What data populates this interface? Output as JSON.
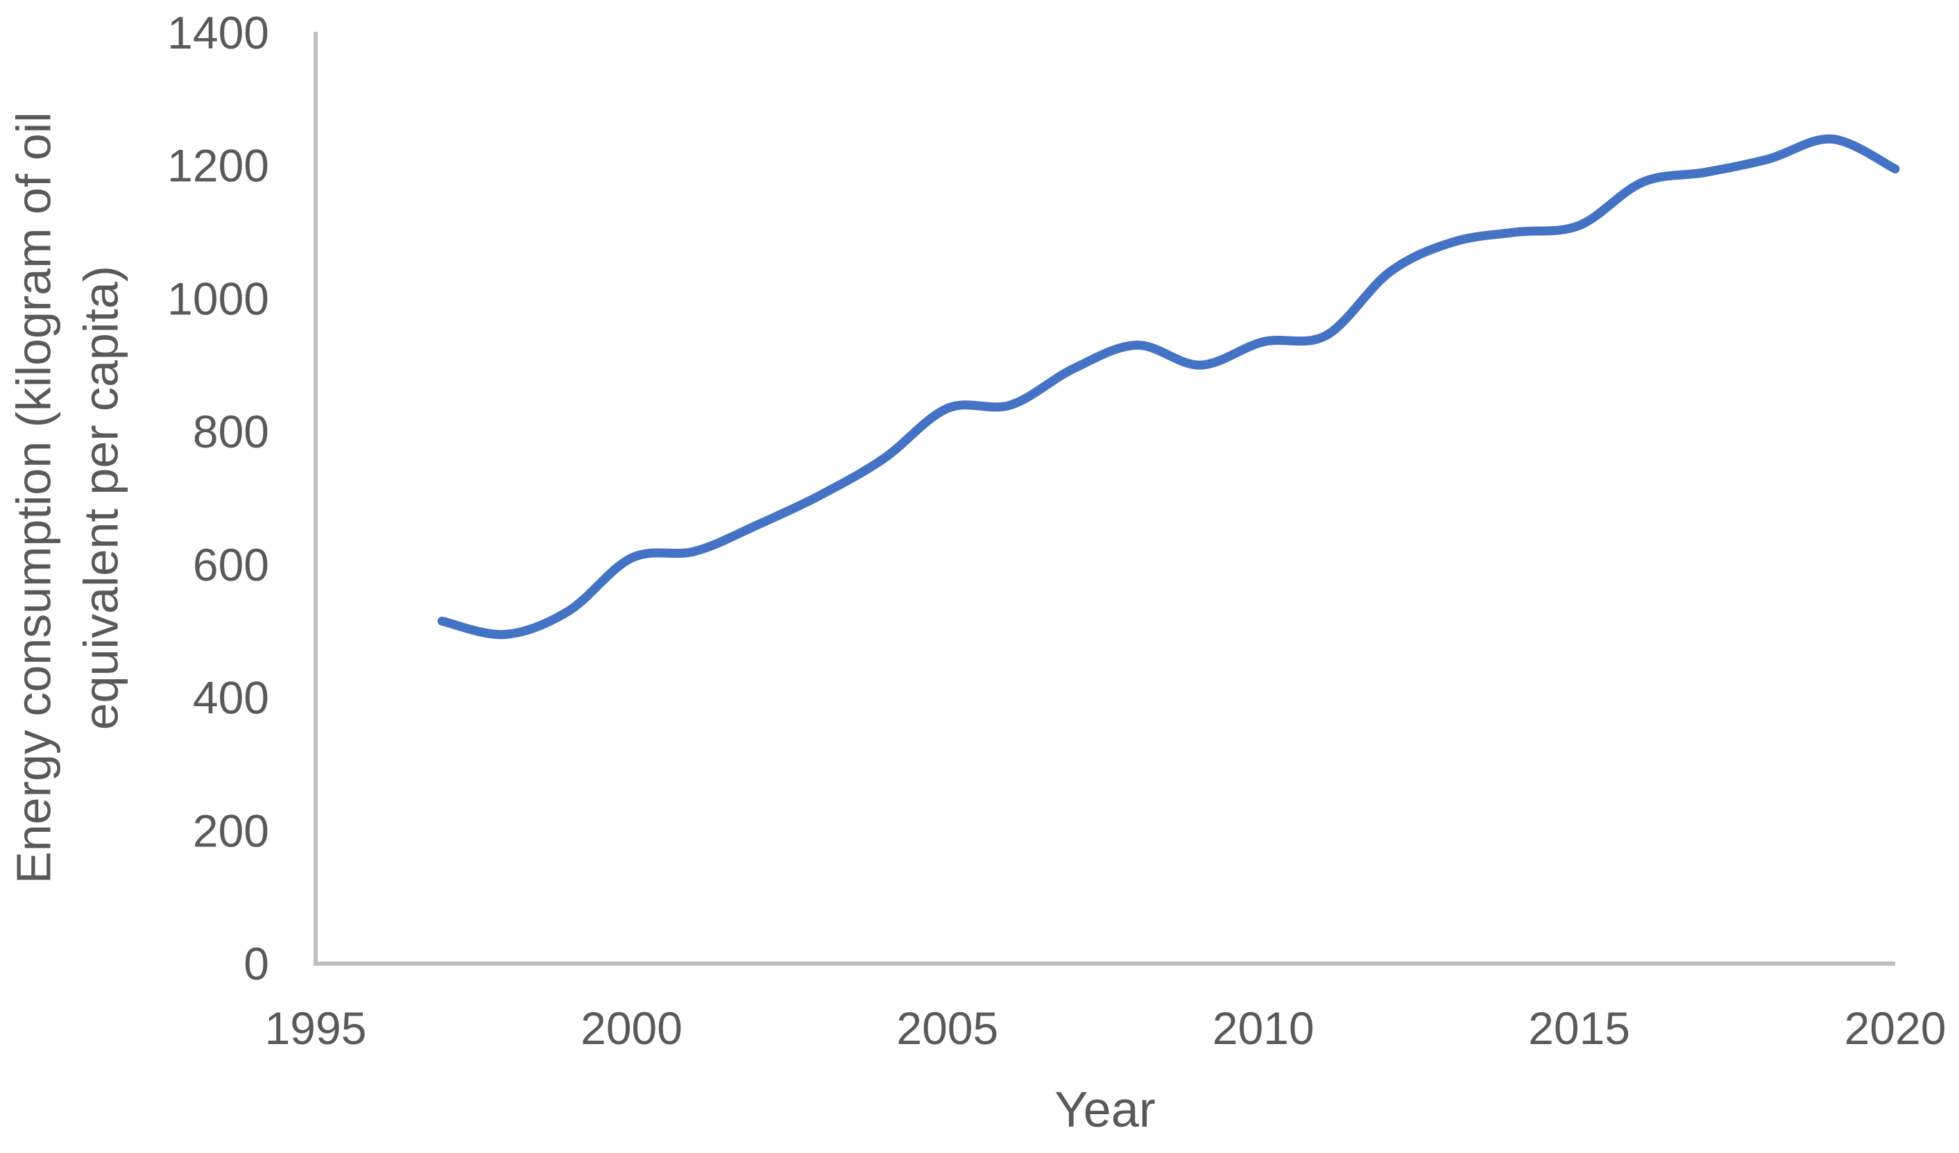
{
  "chart_data": {
    "type": "line",
    "title": "",
    "xlabel": "Year",
    "ylabel": "Energy consumption (kilogram of oil equivalent per capita)",
    "ylabel_lines": [
      "Energy consumption (kilogram of oil",
      "equivalent per capita)"
    ],
    "x": [
      1997,
      1998,
      1999,
      2000,
      2001,
      2002,
      2003,
      2004,
      2005,
      2006,
      2007,
      2008,
      2009,
      2010,
      2011,
      2012,
      2013,
      2014,
      2015,
      2016,
      2017,
      2018,
      2019,
      2020
    ],
    "values": [
      515,
      495,
      530,
      610,
      620,
      660,
      705,
      760,
      835,
      840,
      895,
      930,
      900,
      935,
      945,
      1040,
      1085,
      1100,
      1110,
      1175,
      1190,
      1210,
      1240,
      1195
    ],
    "xlim": [
      1995,
      2020
    ],
    "ylim": [
      0,
      1400
    ],
    "xticks": [
      1995,
      2000,
      2005,
      2010,
      2015,
      2020
    ],
    "yticks": [
      0,
      200,
      400,
      600,
      800,
      1000,
      1200,
      1400
    ],
    "grid": false,
    "legend": "none",
    "smooth": true,
    "colors": {
      "line": "#4472C4",
      "axis": "#BFBFBF",
      "text": "#595959",
      "background": "#FFFFFF"
    }
  }
}
